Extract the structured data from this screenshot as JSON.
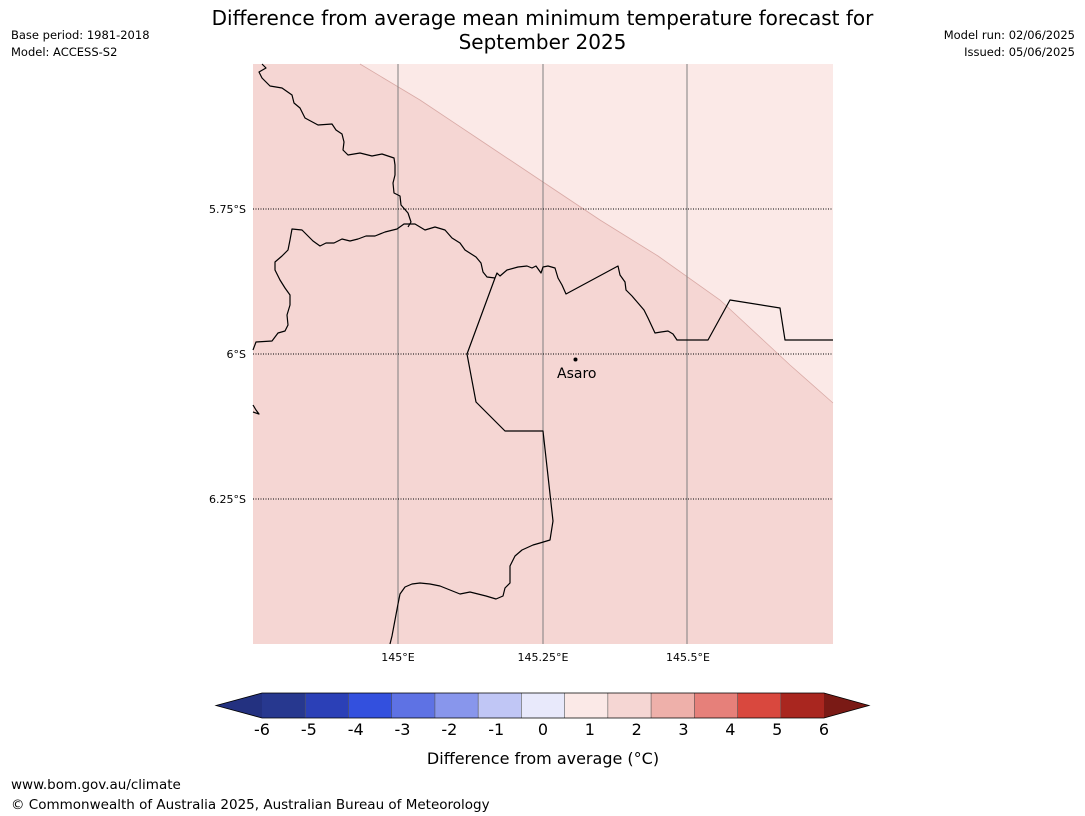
{
  "title": {
    "line1": "Difference from average mean minimum temperature forecast for",
    "line2": "September 2025"
  },
  "meta_left": [
    "Base period: 1981-2018",
    "Model: ACCESS-S2"
  ],
  "meta_right": [
    "Model run: 02/06/2025",
    "Issued: 05/06/2025"
  ],
  "map": {
    "fill_colors": {
      "band_0_to_1": "#fbe9e7",
      "band_1_to_2": "#f5d6d3"
    },
    "lat_labels": [
      "5.75°S",
      "6°S",
      "6.25°S"
    ],
    "lon_labels": [
      "145°E",
      "145.25°E",
      "145.5°E"
    ],
    "place": {
      "name": "Asaro"
    }
  },
  "colorbar": {
    "ticks": [
      "-6",
      "-5",
      "-4",
      "-3",
      "-2",
      "-1",
      "0",
      "1",
      "2",
      "3",
      "4",
      "5",
      "6"
    ],
    "colors": [
      "#27388f",
      "#2b40b7",
      "#3350de",
      "#5e72e4",
      "#8896ec",
      "#c0c6f5",
      "#e8e9fb",
      "#fbe9e7",
      "#f5d6d3",
      "#eeb0aa",
      "#e6807a",
      "#d9483e",
      "#a9261f"
    ],
    "under_color": "#233180",
    "over_color": "#7a1a15",
    "label": "Difference from average ($^\\circ$C)",
    "label_display": "Difference from average (°C)"
  },
  "footer": {
    "url": "www.bom.gov.au/climate",
    "copyright": "© Commonwealth of Australia 2025, Australian Bureau of Meteorology"
  }
}
